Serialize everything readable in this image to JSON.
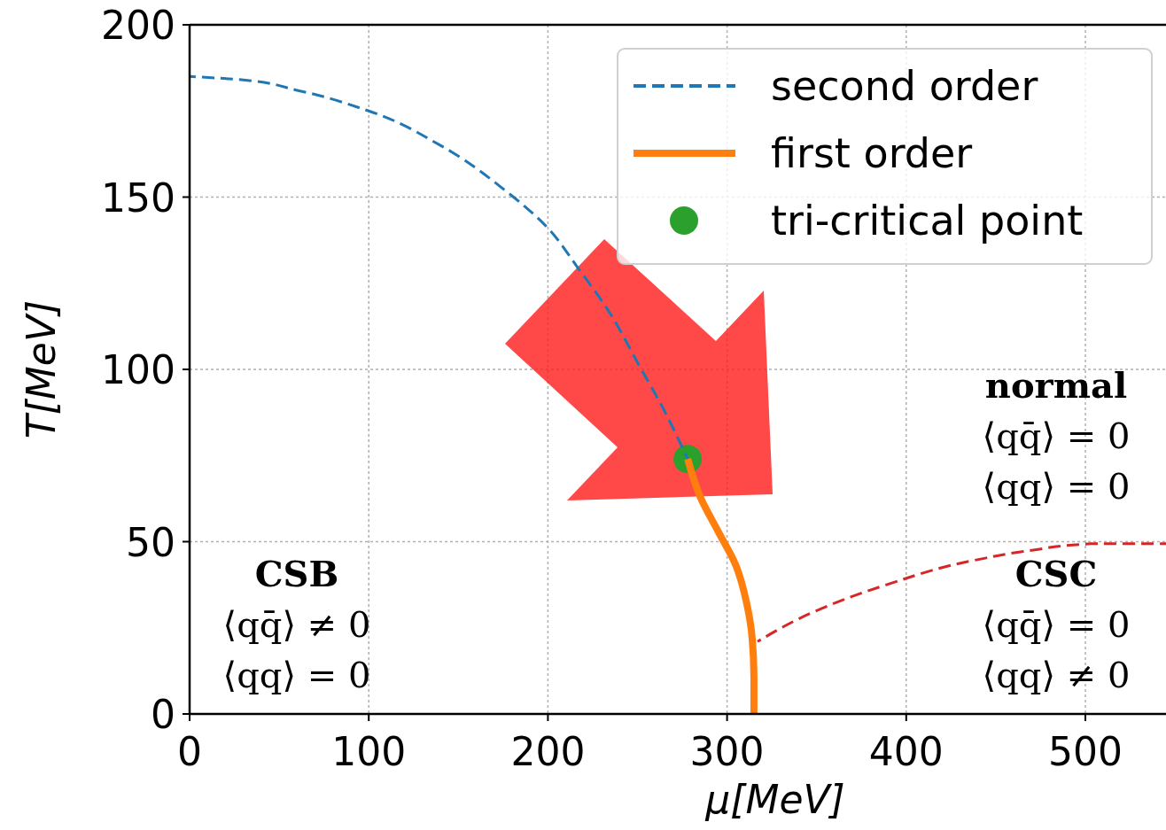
{
  "chart_data": {
    "type": "line",
    "xlabel": "μ[MeV]",
    "ylabel": "T[MeV]",
    "xlim": [
      0,
      545
    ],
    "ylim": [
      0,
      200
    ],
    "xticks": [
      0,
      100,
      200,
      300,
      400,
      500
    ],
    "yticks": [
      0,
      50,
      100,
      150,
      200
    ],
    "grid": true,
    "legend": "top right",
    "series": [
      {
        "name": "second order",
        "type": "line",
        "color": "#1f77b4",
        "line_style": "dashed",
        "marker": "none",
        "x": [
          0,
          30,
          60,
          100,
          140,
          176,
          200,
          216,
          235,
          250,
          265,
          278
        ],
        "values": [
          185,
          184,
          181,
          175,
          165,
          152,
          141,
          130,
          116,
          102,
          88,
          74
        ]
      },
      {
        "name": "first order",
        "type": "line",
        "color": "#ff7f0e",
        "line_style": "solid",
        "marker": "none",
        "x": [
          278,
          285,
          295,
          305,
          311,
          314,
          315,
          315
        ],
        "values": [
          74,
          63,
          53,
          43,
          32,
          22,
          10,
          0
        ]
      },
      {
        "type": "line",
        "color": "#d62728",
        "line_style": "dashed",
        "marker": "none",
        "x": [
          317,
          350,
          389,
          439,
          470,
          503,
          545
        ],
        "values": [
          21,
          30,
          37.5,
          44.7,
          47.5,
          49.4,
          49.4
        ]
      },
      {
        "name": "tri-critical point",
        "type": "scatter",
        "color": "#2ca02c",
        "marker": "circle",
        "x": [
          278
        ],
        "values": [
          74
        ]
      }
    ],
    "annotations": [
      "CSB\n⟨qq̄⟩ ≠ 0\n⟨qq⟩ = 0",
      "normal\n⟨qq̄⟩ = 0\n⟨qq⟩ = 0",
      "CSC\n⟨qq̄⟩ = 0\n⟨qq⟩ ≠ 0"
    ]
  }
}
